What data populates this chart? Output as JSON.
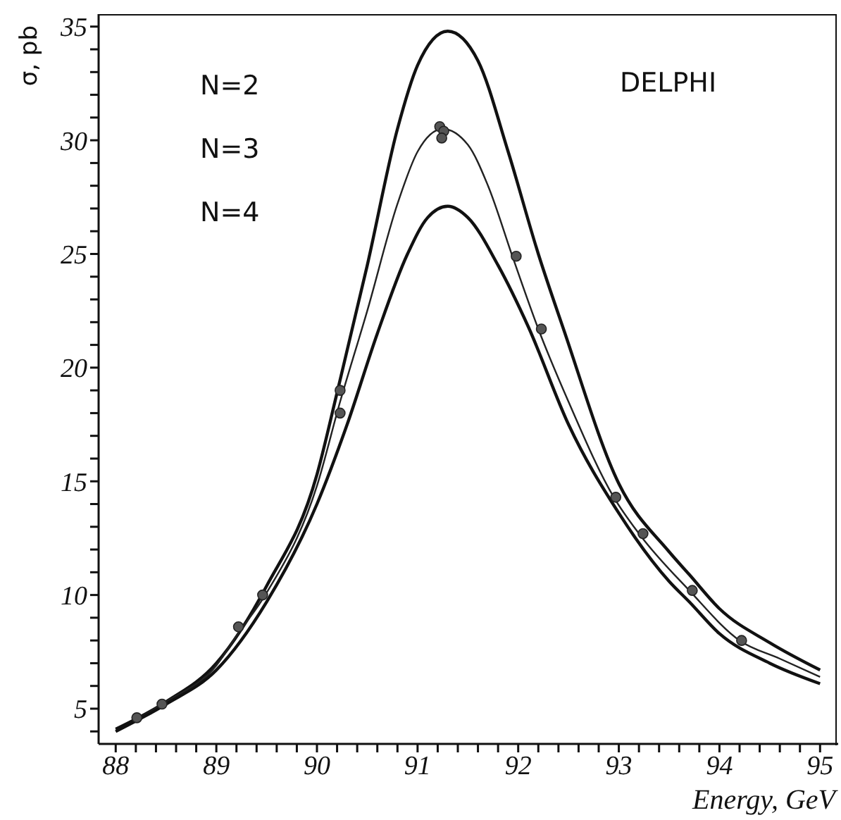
{
  "chart_data": {
    "type": "line",
    "xlabel": "Energy, GeV",
    "ylabel": "σ, pb",
    "annotations": [
      "N=2",
      "N=3",
      "N=4",
      "DELPHI"
    ],
    "xlim": [
      87.83,
      95.18
    ],
    "ylim": [
      3.45,
      35.55
    ],
    "xticks": [
      88,
      {
        "value": 88.2,
        "label": null
      },
      {
        "value": 88.4,
        "label": null
      },
      {
        "value": 88.6,
        "label": null
      },
      {
        "value": 88.8,
        "label": null
      },
      89,
      {
        "value": 89.2,
        "label": null
      },
      {
        "value": 89.4,
        "label": null
      },
      {
        "value": 89.6,
        "label": null
      },
      {
        "value": 89.8,
        "label": null
      },
      90,
      {
        "value": 90.2,
        "label": null
      },
      {
        "value": 90.4,
        "label": null
      },
      {
        "value": 90.6,
        "label": null
      },
      {
        "value": 90.8,
        "label": null
      },
      91,
      {
        "value": 91.2,
        "label": null
      },
      {
        "value": 91.4,
        "label": null
      },
      {
        "value": 91.6,
        "label": null
      },
      {
        "value": 91.8,
        "label": null
      },
      92,
      {
        "value": 92.2,
        "label": null
      },
      {
        "value": 92.4,
        "label": null
      },
      {
        "value": 92.6,
        "label": null
      },
      {
        "value": 92.8,
        "label": null
      },
      93,
      {
        "value": 93.2,
        "label": null
      },
      {
        "value": 93.4,
        "label": null
      },
      {
        "value": 93.6,
        "label": null
      },
      {
        "value": 93.8,
        "label": null
      },
      94,
      {
        "value": 94.2,
        "label": null
      },
      {
        "value": 94.4,
        "label": null
      },
      {
        "value": 94.6,
        "label": null
      },
      {
        "value": 94.8,
        "label": null
      },
      95
    ],
    "yticks": [
      {
        "value": 4,
        "label": null
      },
      5,
      {
        "value": 6,
        "label": null
      },
      {
        "value": 7,
        "label": null
      },
      {
        "value": 8,
        "label": null
      },
      {
        "value": 9,
        "label": null
      },
      10,
      {
        "value": 11,
        "label": null
      },
      {
        "value": 12,
        "label": null
      },
      {
        "value": 13,
        "label": null
      },
      {
        "value": 14,
        "label": null
      },
      15,
      {
        "value": 16,
        "label": null
      },
      {
        "value": 17,
        "label": null
      },
      {
        "value": 18,
        "label": null
      },
      {
        "value": 19,
        "label": null
      },
      20,
      {
        "value": 21,
        "label": null
      },
      {
        "value": 22,
        "label": null
      },
      {
        "value": 23,
        "label": null
      },
      {
        "value": 24,
        "label": null
      },
      25,
      {
        "value": 26,
        "label": null
      },
      {
        "value": 27,
        "label": null
      },
      {
        "value": 28,
        "label": null
      },
      {
        "value": 29,
        "label": null
      },
      30,
      {
        "value": 31,
        "label": null
      },
      {
        "value": 32,
        "label": null
      },
      {
        "value": 33,
        "label": null
      },
      {
        "value": 34,
        "label": null
      },
      35
    ],
    "grid": false,
    "legend": false,
    "line_style": "solid",
    "marker": "none",
    "series": [
      {
        "color": "#111111",
        "x": [
          88,
          88.5,
          89,
          89.5,
          90,
          90.2,
          90.5,
          90.8,
          91,
          91.3,
          91.6,
          91.9,
          92.2,
          92.45,
          93,
          93.5,
          93.7,
          94,
          94.5,
          95
        ],
        "values": [
          4.1,
          5.3,
          7.0,
          10.4,
          15.3,
          18.9,
          24.5,
          30.5,
          33.3,
          34.8,
          33.5,
          29.5,
          25.0,
          21.7,
          14.9,
          11.9,
          10.9,
          9.4,
          7.9,
          6.7
        ]
      },
      {
        "color": "#222222",
        "x": [
          88,
          88.2,
          88.5,
          89,
          89.2,
          89.5,
          90,
          90.23,
          90.5,
          90.8,
          91,
          91.25,
          91.5,
          91.7,
          91.95,
          92.2,
          92.5,
          92.95,
          93.2,
          93.7,
          94.2,
          94.6,
          95
        ],
        "values": [
          4.0,
          4.5,
          5.3,
          6.9,
          8.2,
          10.1,
          14.8,
          18.5,
          22.5,
          27.2,
          29.5,
          30.5,
          29.8,
          28.0,
          24.8,
          21.7,
          18.5,
          14.3,
          12.7,
          10.2,
          8.0,
          7.2,
          6.4
        ]
      },
      {
        "color": "#111111",
        "x": [
          88,
          88.5,
          89,
          89.5,
          90,
          90.3,
          90.6,
          90.9,
          91.1,
          91.3,
          91.5,
          91.8,
          92.1,
          92.5,
          93,
          93.5,
          93.7,
          94,
          94.5,
          95
        ],
        "values": [
          4.0,
          5.2,
          6.7,
          9.7,
          14.0,
          17.5,
          21.5,
          25.0,
          26.6,
          27.1,
          26.6,
          24.5,
          21.8,
          17.5,
          13.6,
          10.6,
          9.7,
          8.3,
          7.0,
          6.1
        ]
      },
      {
        "type": "scatter",
        "color": "#555555",
        "marker": "circle",
        "x": [
          88.21,
          88.46,
          89.22,
          89.46,
          90.23,
          90.23,
          91.22,
          91.26,
          91.24,
          91.98,
          92.23,
          92.97,
          93.24,
          93.73,
          94.22
        ],
        "values": [
          4.6,
          5.2,
          8.6,
          10.0,
          18.0,
          19.0,
          30.6,
          30.4,
          30.1,
          24.9,
          21.7,
          14.3,
          12.7,
          10.2,
          8.0
        ]
      }
    ]
  }
}
